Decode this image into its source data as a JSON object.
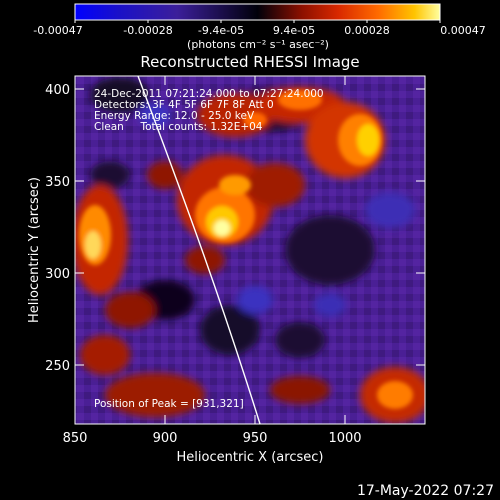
{
  "colorbar": {
    "ticks": [
      "-0.00047",
      "-0.00028",
      "-9.4e-05",
      "9.4e-05",
      "0.00028",
      "0.00047"
    ],
    "units_label": "(photons cm⁻² s⁻¹ asec⁻²)",
    "stops": [
      "#0000ff",
      "#1a10c8",
      "#3b1f9a",
      "#00000a",
      "#8b1000",
      "#d82800",
      "#ff6a00",
      "#ffc400",
      "#ffffa0"
    ]
  },
  "plot": {
    "title": "Reconstructed RHESSI Image",
    "info_lines": [
      "24-Dec-2011 07:21:24.000 to 07:27:24.000",
      "Detectors: 3F 4F 5F 6F 7F 8F  Att 0",
      "Energy Range: 12.0 - 25.0 keV",
      "Clean     Total counts: 1.32E+04"
    ],
    "peak_label": "Position of Peak = [931,321]",
    "x_axis_label": "Heliocentric X (arcsec)",
    "y_axis_label": "Heliocentric Y (arcsec)",
    "x_ticks": [
      "850",
      "900",
      "950",
      "1000"
    ],
    "y_ticks": [
      "250",
      "300",
      "350",
      "400"
    ]
  },
  "footer": {
    "timestamp": "17-May-2022 07:27"
  }
}
